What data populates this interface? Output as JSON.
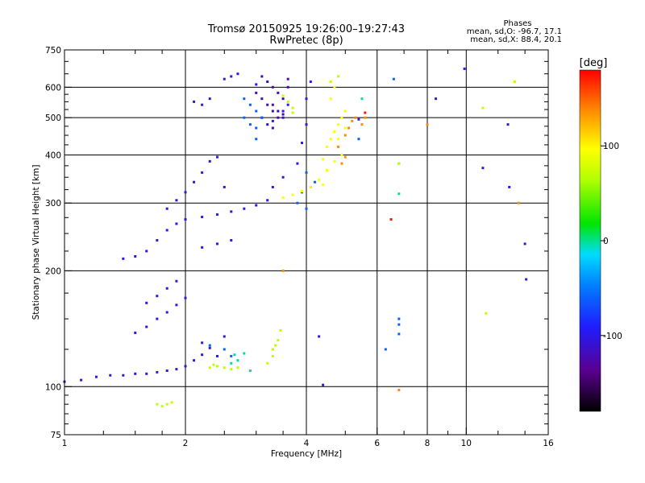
{
  "chart_data": {
    "type": "scatter",
    "title": "Tromsø 20150925 19:26:00–19:27:43",
    "subtitle": "RwPretec (8p)",
    "xlabel": "Frequency [MHz]",
    "ylabel": "Stationary phase Virtual Height [km]",
    "xscale": "log",
    "yscale": "log",
    "xlim": [
      1,
      16
    ],
    "ylim": [
      75,
      750
    ],
    "xticks": [
      1,
      2,
      4,
      6,
      8,
      10,
      16
    ],
    "xtick_labels": [
      "1",
      "2",
      "4",
      "6",
      "8",
      "10",
      "16"
    ],
    "yticks": [
      75,
      100,
      200,
      300,
      400,
      500,
      600,
      750
    ],
    "ytick_labels": [
      "75",
      "100",
      "200",
      "300",
      "400",
      "500",
      "600",
      "750"
    ],
    "grid": true,
    "legend": {
      "title": "Phases",
      "line1": "mean, sd,O: -96.7, 17.1",
      "line2": "mean, sd,X:  88.4, 20.1",
      "placement": "top-right"
    },
    "colorbar": {
      "label": "[deg]",
      "range": [
        -180,
        180
      ],
      "ticks": [
        100,
        0,
        -100
      ],
      "tick_labels": [
        "100",
        "0",
        "-100"
      ],
      "placement": "right"
    },
    "series": [
      {
        "phase_deg": -100,
        "points": [
          [
            1.0,
            103
          ],
          [
            1.1,
            104
          ],
          [
            1.2,
            106
          ],
          [
            1.3,
            107
          ],
          [
            1.4,
            107
          ],
          [
            1.5,
            108
          ],
          [
            1.6,
            108
          ],
          [
            1.7,
            109
          ],
          [
            1.8,
            110
          ],
          [
            1.9,
            111
          ],
          [
            2.0,
            113
          ],
          [
            2.1,
            117
          ],
          [
            2.2,
            121
          ],
          [
            2.3,
            126
          ],
          [
            1.5,
            138
          ],
          [
            1.6,
            143
          ],
          [
            1.7,
            150
          ],
          [
            1.8,
            156
          ],
          [
            1.9,
            163
          ],
          [
            2.0,
            170
          ],
          [
            1.6,
            165
          ],
          [
            1.7,
            172
          ],
          [
            1.8,
            180
          ],
          [
            1.9,
            188
          ],
          [
            1.4,
            215
          ],
          [
            1.5,
            218
          ],
          [
            1.6,
            225
          ],
          [
            1.7,
            240
          ],
          [
            1.8,
            255
          ],
          [
            1.9,
            265
          ],
          [
            2.0,
            272
          ],
          [
            2.2,
            276
          ],
          [
            2.4,
            280
          ],
          [
            2.6,
            285
          ],
          [
            2.8,
            290
          ],
          [
            3.0,
            296
          ],
          [
            3.2,
            305
          ],
          [
            1.8,
            290
          ],
          [
            1.9,
            305
          ],
          [
            2.0,
            320
          ],
          [
            2.1,
            340
          ],
          [
            2.2,
            360
          ],
          [
            2.3,
            385
          ],
          [
            2.4,
            395
          ],
          [
            2.5,
            330
          ],
          [
            2.2,
            230
          ],
          [
            2.4,
            235
          ],
          [
            2.6,
            240
          ],
          [
            2.1,
            550
          ],
          [
            2.2,
            540
          ],
          [
            2.3,
            560
          ],
          [
            2.5,
            630
          ],
          [
            2.6,
            640
          ],
          [
            2.7,
            650
          ],
          [
            3.0,
            610
          ],
          [
            3.3,
            490
          ],
          [
            3.5,
            520
          ],
          [
            3.6,
            540
          ],
          [
            3.3,
            330
          ],
          [
            3.5,
            350
          ],
          [
            3.8,
            380
          ],
          [
            3.9,
            430
          ],
          [
            4.0,
            480
          ],
          [
            4.0,
            560
          ],
          [
            4.1,
            620
          ],
          [
            2.4,
            120
          ],
          [
            2.5,
            135
          ],
          [
            2.2,
            130
          ],
          [
            4.3,
            135
          ],
          [
            4.4,
            101
          ],
          [
            5.4,
            495
          ],
          [
            8.4,
            560
          ],
          [
            9.9,
            670
          ],
          [
            11.0,
            370
          ],
          [
            12.7,
            480
          ],
          [
            12.8,
            330
          ],
          [
            14.0,
            235
          ],
          [
            14.1,
            190
          ]
        ]
      },
      {
        "phase_deg": -120,
        "points": [
          [
            3.0,
            580
          ],
          [
            3.1,
            560
          ],
          [
            3.2,
            540
          ],
          [
            3.3,
            520
          ],
          [
            3.4,
            500
          ],
          [
            3.5,
            510
          ],
          [
            3.6,
            600
          ],
          [
            3.1,
            640
          ],
          [
            3.2,
            620
          ],
          [
            3.3,
            600
          ],
          [
            3.4,
            580
          ],
          [
            3.5,
            560
          ],
          [
            3.3,
            540
          ],
          [
            3.4,
            520
          ],
          [
            3.5,
            500
          ],
          [
            3.6,
            630
          ],
          [
            3.2,
            480
          ],
          [
            3.3,
            470
          ],
          [
            3.1,
            500
          ]
        ]
      },
      {
        "phase_deg": -60,
        "points": [
          [
            2.8,
            560
          ],
          [
            2.9,
            540
          ],
          [
            3.0,
            520
          ],
          [
            3.1,
            500
          ],
          [
            2.9,
            480
          ],
          [
            3.0,
            470
          ],
          [
            2.8,
            500
          ],
          [
            3.0,
            440
          ],
          [
            3.8,
            300
          ],
          [
            4.0,
            290
          ],
          [
            3.9,
            320
          ],
          [
            4.1,
            330
          ],
          [
            4.2,
            340
          ],
          [
            4.0,
            360
          ],
          [
            2.5,
            125
          ],
          [
            2.6,
            120
          ],
          [
            2.3,
            128
          ],
          [
            6.8,
            137
          ],
          [
            6.8,
            145
          ],
          [
            6.8,
            150
          ],
          [
            6.3,
            125
          ],
          [
            5.4,
            440
          ],
          [
            6.6,
            630
          ]
        ]
      },
      {
        "phase_deg": 0,
        "points": [
          [
            2.6,
            115
          ],
          [
            2.7,
            117
          ],
          [
            2.8,
            122
          ],
          [
            2.9,
            110
          ],
          [
            2.65,
            121
          ],
          [
            5.5,
            560
          ],
          [
            6.8,
            317
          ],
          [
            6.8,
            380
          ]
        ]
      },
      {
        "phase_deg": 70,
        "points": [
          [
            1.7,
            90
          ],
          [
            1.75,
            89
          ],
          [
            1.8,
            90
          ],
          [
            1.85,
            91
          ],
          [
            2.3,
            112
          ],
          [
            2.4,
            113
          ],
          [
            2.5,
            112
          ],
          [
            2.6,
            111
          ],
          [
            2.7,
            112
          ],
          [
            2.35,
            114
          ],
          [
            3.2,
            115
          ],
          [
            3.3,
            125
          ],
          [
            3.4,
            132
          ],
          [
            3.45,
            140
          ],
          [
            3.3,
            120
          ],
          [
            3.35,
            128
          ],
          [
            3.6,
            550
          ],
          [
            3.7,
            530
          ],
          [
            3.5,
            570
          ],
          [
            3.7,
            515
          ],
          [
            11.2,
            155
          ],
          [
            4.6,
            620
          ],
          [
            4.8,
            640
          ],
          [
            13.2,
            620
          ],
          [
            11.0,
            530
          ],
          [
            6.8,
            380
          ]
        ]
      },
      {
        "phase_deg": 100,
        "points": [
          [
            3.5,
            310
          ],
          [
            3.7,
            315
          ],
          [
            3.9,
            322
          ],
          [
            4.1,
            330
          ],
          [
            4.3,
            345
          ],
          [
            4.5,
            365
          ],
          [
            4.7,
            385
          ],
          [
            4.9,
            400
          ],
          [
            4.5,
            420
          ],
          [
            4.6,
            440
          ],
          [
            4.7,
            460
          ],
          [
            4.8,
            480
          ],
          [
            4.9,
            500
          ],
          [
            5.0,
            520
          ],
          [
            4.6,
            560
          ],
          [
            4.7,
            600
          ],
          [
            5.0,
            470
          ],
          [
            4.8,
            440
          ],
          [
            4.4,
            390
          ],
          [
            4.4,
            335
          ]
        ]
      },
      {
        "phase_deg": 140,
        "points": [
          [
            4.8,
            420
          ],
          [
            5.0,
            450
          ],
          [
            5.1,
            470
          ],
          [
            5.2,
            490
          ],
          [
            5.3,
            500
          ],
          [
            4.9,
            380
          ],
          [
            5.0,
            395
          ],
          [
            5.5,
            480
          ],
          [
            5.6,
            500
          ],
          [
            8.0,
            480
          ],
          [
            3.5,
            200
          ],
          [
            6.8,
            98
          ],
          [
            13.5,
            300
          ]
        ]
      },
      {
        "phase_deg": 175,
        "points": [
          [
            5.6,
            515
          ],
          [
            6.5,
            272
          ]
        ]
      }
    ]
  }
}
